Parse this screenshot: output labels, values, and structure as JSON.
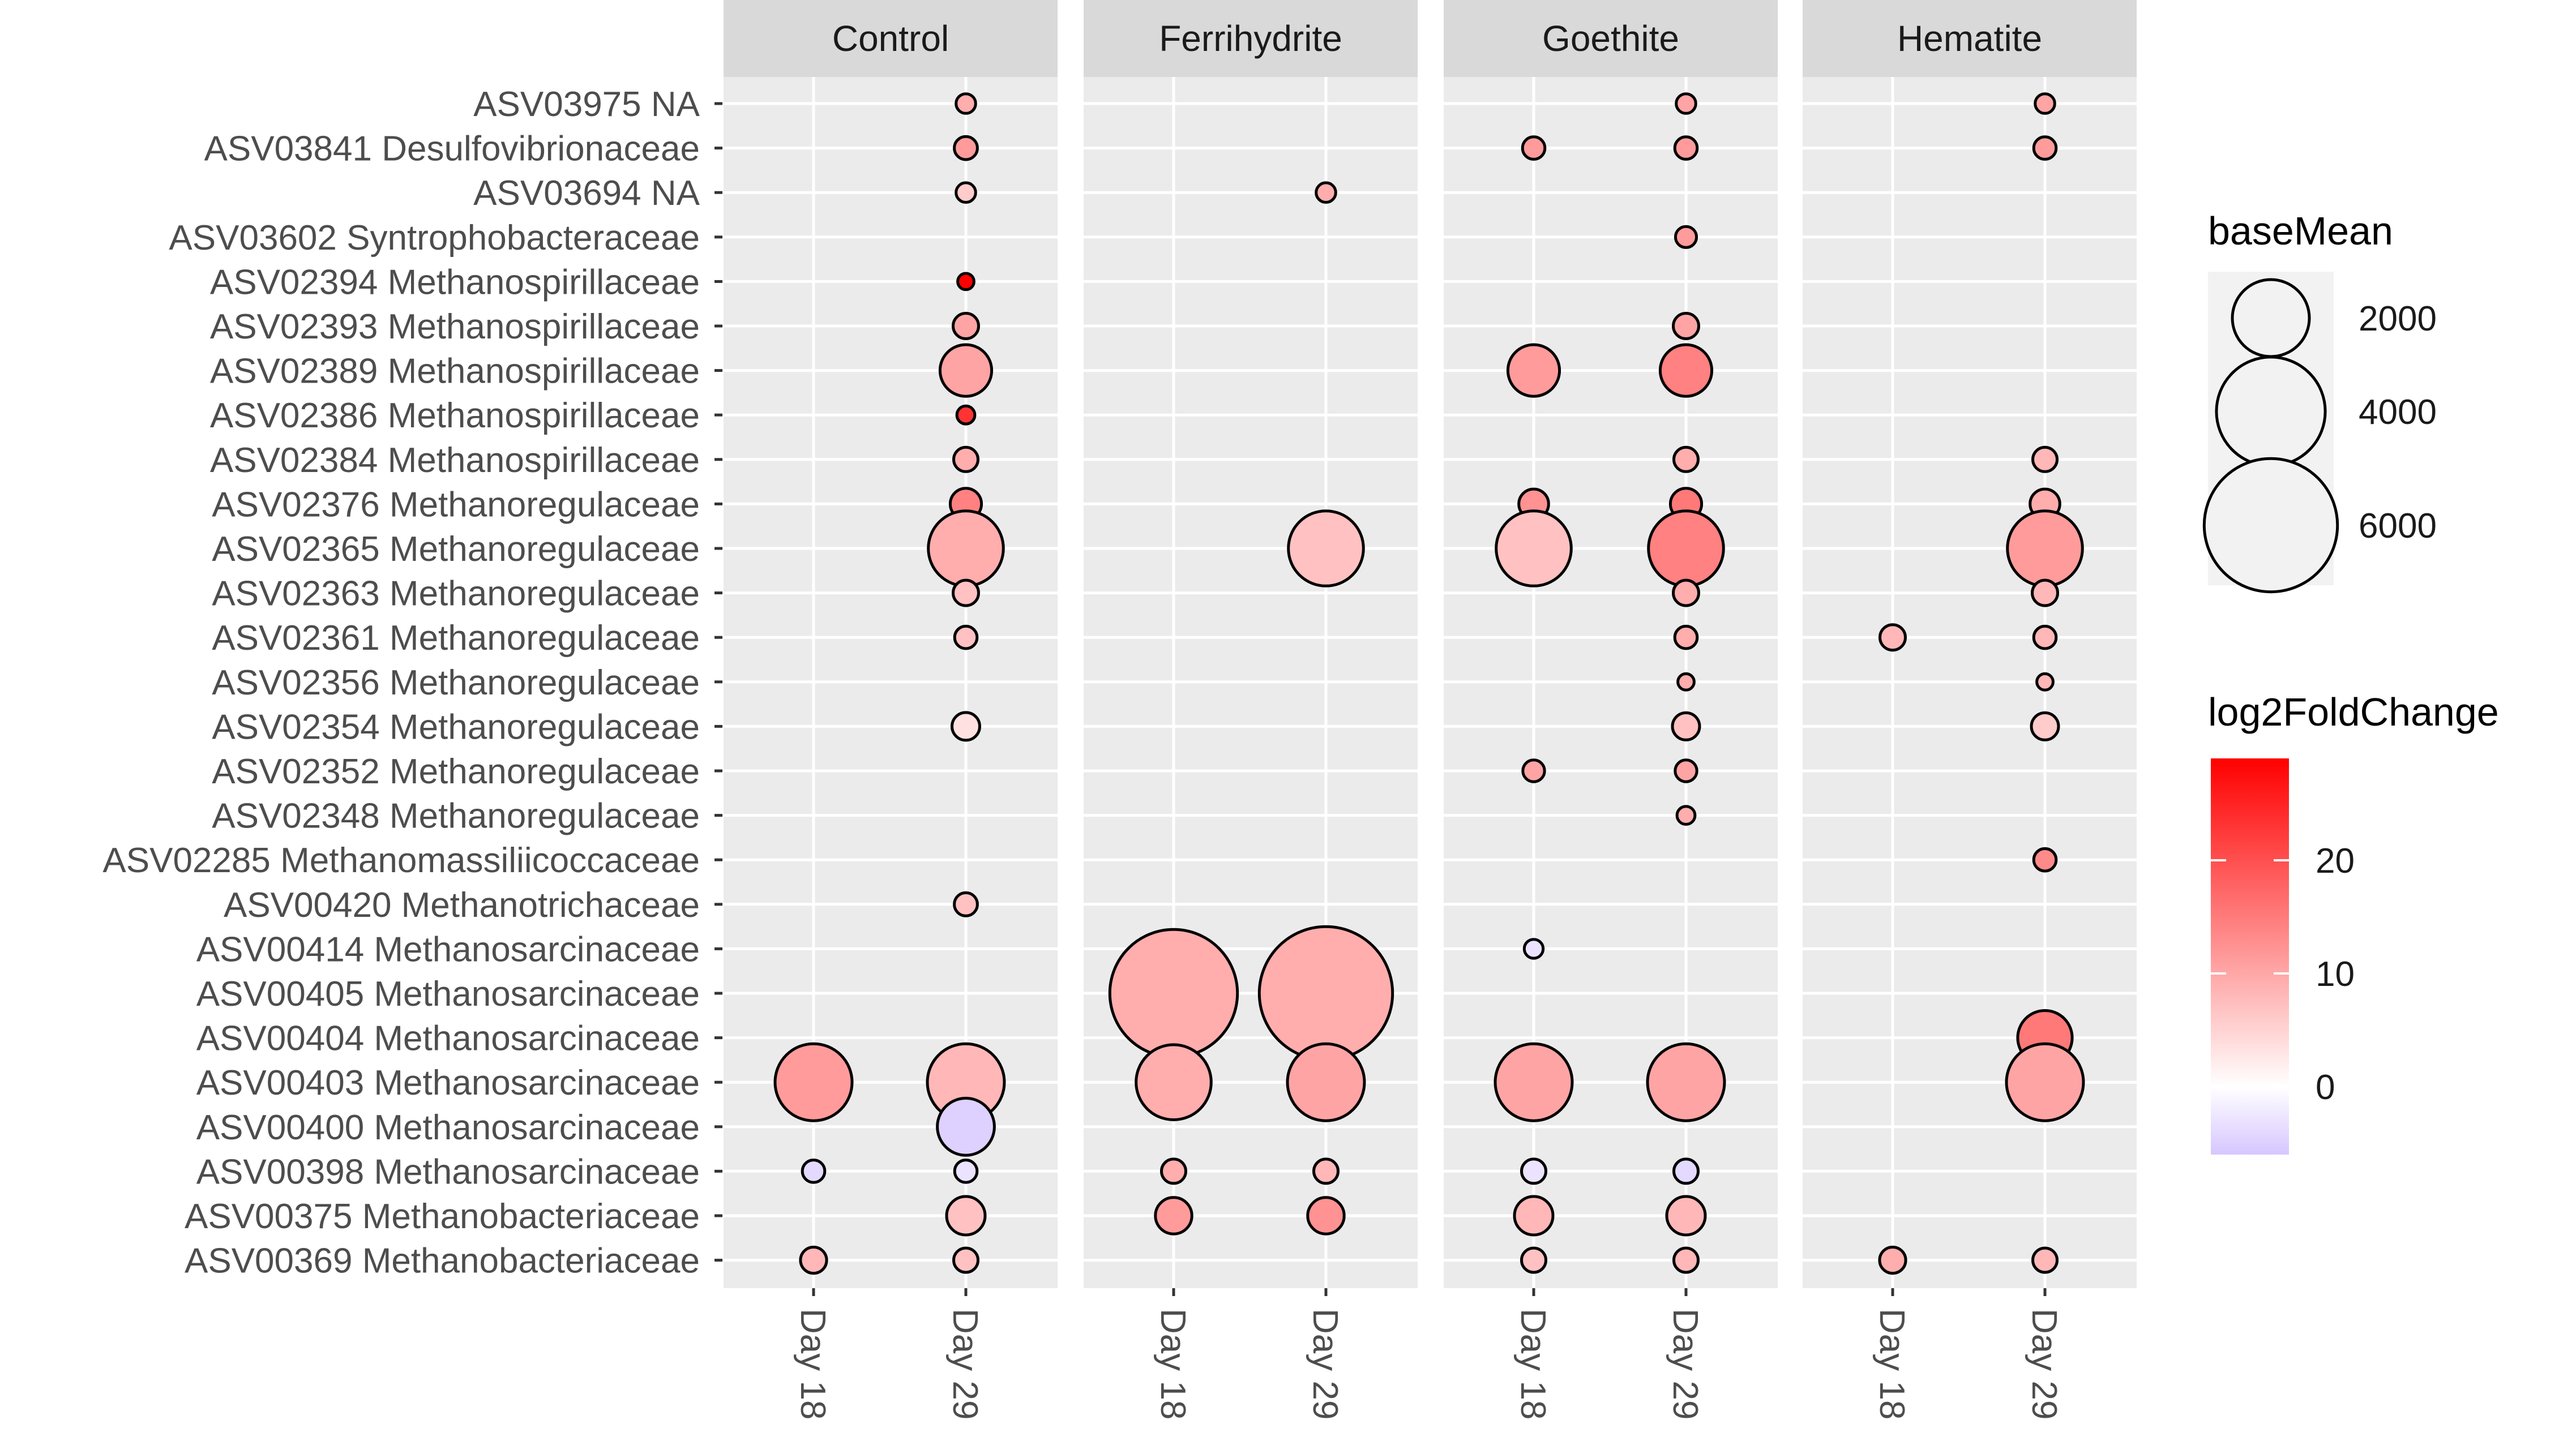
{
  "chart_data": {
    "type": "scatter",
    "chart_kind": "faceted-bubble",
    "facets": [
      "Control",
      "Ferrihydrite",
      "Goethite",
      "Hematite"
    ],
    "x_categories": [
      "Day 18",
      "Day 29"
    ],
    "y_categories": [
      "ASV03975 NA",
      "ASV03841 Desulfovibrionaceae",
      "ASV03694 NA",
      "ASV03602 Syntrophobacteraceae",
      "ASV02394 Methanospirillaceae",
      "ASV02393 Methanospirillaceae",
      "ASV02389 Methanospirillaceae",
      "ASV02386 Methanospirillaceae",
      "ASV02384 Methanospirillaceae",
      "ASV02376 Methanoregulaceae",
      "ASV02365 Methanoregulaceae",
      "ASV02363 Methanoregulaceae",
      "ASV02361 Methanoregulaceae",
      "ASV02356 Methanoregulaceae",
      "ASV02354 Methanoregulaceae",
      "ASV02352 Methanoregulaceae",
      "ASV02348 Methanoregulaceae",
      "ASV02285 Methanomassiliicoccaceae",
      "ASV00420 Methanotrichaceae",
      "ASV00414 Methanosarcinaceae",
      "ASV00405 Methanosarcinaceae",
      "ASV00404 Methanosarcinaceae",
      "ASV00403 Methanosarcinaceae",
      "ASV00400 Methanosarcinaceae",
      "ASV00398 Methanosarcinaceae",
      "ASV00375 Methanobacteriaceae",
      "ASV00369 Methanobacteriaceae"
    ],
    "legend": {
      "size_title": "baseMean",
      "size_breaks": [
        2000,
        4000,
        6000
      ],
      "size_labels": [
        "2000",
        "4000",
        "6000"
      ],
      "color_title": "log2FoldChange",
      "color_breaks": [
        0,
        10,
        20
      ],
      "color_labels": [
        "0",
        "10",
        "20"
      ],
      "color_range": [
        -6,
        29
      ],
      "color_low": "#d7c6ff",
      "color_mid": "#ffffff",
      "color_high": "#ff0000"
    },
    "points": [
      {
        "facet": "Control",
        "x": "Day 29",
        "y": "ASV03975 NA",
        "baseMean": 130,
        "log2FoldChange": 7
      },
      {
        "facet": "Control",
        "x": "Day 29",
        "y": "ASV03841 Desulfovibrionaceae",
        "baseMean": 180,
        "log2FoldChange": 9
      },
      {
        "facet": "Control",
        "x": "Day 29",
        "y": "ASV03694 NA",
        "baseMean": 130,
        "log2FoldChange": 4
      },
      {
        "facet": "Control",
        "x": "Day 29",
        "y": "ASV02394 Methanospirillaceae",
        "baseMean": 90,
        "log2FoldChange": 29
      },
      {
        "facet": "Control",
        "x": "Day 29",
        "y": "ASV02393 Methanospirillaceae",
        "baseMean": 220,
        "log2FoldChange": 8
      },
      {
        "facet": "Control",
        "x": "Day 29",
        "y": "ASV02389 Methanospirillaceae",
        "baseMean": 900,
        "log2FoldChange": 8
      },
      {
        "facet": "Control",
        "x": "Day 29",
        "y": "ASV02386 Methanospirillaceae",
        "baseMean": 110,
        "log2FoldChange": 22
      },
      {
        "facet": "Control",
        "x": "Day 29",
        "y": "ASV02384 Methanospirillaceae",
        "baseMean": 200,
        "log2FoldChange": 7
      },
      {
        "facet": "Control",
        "x": "Day 29",
        "y": "ASV02376 Methanoregulaceae",
        "baseMean": 330,
        "log2FoldChange": 12
      },
      {
        "facet": "Control",
        "x": "Day 29",
        "y": "ASV02365 Methanoregulaceae",
        "baseMean": 1900,
        "log2FoldChange": 7
      },
      {
        "facet": "Control",
        "x": "Day 29",
        "y": "ASV02363 Methanoregulaceae",
        "baseMean": 220,
        "log2FoldChange": 5
      },
      {
        "facet": "Control",
        "x": "Day 29",
        "y": "ASV02361 Methanoregulaceae",
        "baseMean": 170,
        "log2FoldChange": 5
      },
      {
        "facet": "Control",
        "x": "Day 29",
        "y": "ASV02354 Methanoregulaceae",
        "baseMean": 260,
        "log2FoldChange": 2
      },
      {
        "facet": "Control",
        "x": "Day 29",
        "y": "ASV00420 Methanotrichaceae",
        "baseMean": 180,
        "log2FoldChange": 5
      },
      {
        "facet": "Control",
        "x": "Day 18",
        "y": "ASV00403 Methanosarcinaceae",
        "baseMean": 2000,
        "log2FoldChange": 9
      },
      {
        "facet": "Control",
        "x": "Day 29",
        "y": "ASV00403 Methanosarcinaceae",
        "baseMean": 2000,
        "log2FoldChange": 6
      },
      {
        "facet": "Control",
        "x": "Day 29",
        "y": "ASV00400 Methanosarcinaceae",
        "baseMean": 1100,
        "log2FoldChange": -5
      },
      {
        "facet": "Control",
        "x": "Day 18",
        "y": "ASV00398 Methanosarcinaceae",
        "baseMean": 170,
        "log2FoldChange": -4
      },
      {
        "facet": "Control",
        "x": "Day 29",
        "y": "ASV00398 Methanosarcinaceae",
        "baseMean": 170,
        "log2FoldChange": -3
      },
      {
        "facet": "Control",
        "x": "Day 29",
        "y": "ASV00375 Methanobacteriaceae",
        "baseMean": 500,
        "log2FoldChange": 5
      },
      {
        "facet": "Control",
        "x": "Day 18",
        "y": "ASV00369 Methanobacteriaceae",
        "baseMean": 230,
        "log2FoldChange": 6
      },
      {
        "facet": "Control",
        "x": "Day 29",
        "y": "ASV00369 Methanobacteriaceae",
        "baseMean": 200,
        "log2FoldChange": 5
      },
      {
        "facet": "Ferrihydrite",
        "x": "Day 29",
        "y": "ASV03694 NA",
        "baseMean": 130,
        "log2FoldChange": 7
      },
      {
        "facet": "Ferrihydrite",
        "x": "Day 29",
        "y": "ASV02365 Methanoregulaceae",
        "baseMean": 1900,
        "log2FoldChange": 5
      },
      {
        "facet": "Ferrihydrite",
        "x": "Day 18",
        "y": "ASV00405 Methanosarcinaceae",
        "baseMean": 5500,
        "log2FoldChange": 7
      },
      {
        "facet": "Ferrihydrite",
        "x": "Day 29",
        "y": "ASV00405 Methanosarcinaceae",
        "baseMean": 6000,
        "log2FoldChange": 7
      },
      {
        "facet": "Ferrihydrite",
        "x": "Day 18",
        "y": "ASV00403 Methanosarcinaceae",
        "baseMean": 1900,
        "log2FoldChange": 7
      },
      {
        "facet": "Ferrihydrite",
        "x": "Day 29",
        "y": "ASV00403 Methanosarcinaceae",
        "baseMean": 2000,
        "log2FoldChange": 8
      },
      {
        "facet": "Ferrihydrite",
        "x": "Day 18",
        "y": "ASV00398 Methanosarcinaceae",
        "baseMean": 200,
        "log2FoldChange": 7
      },
      {
        "facet": "Ferrihydrite",
        "x": "Day 29",
        "y": "ASV00398 Methanosarcinaceae",
        "baseMean": 200,
        "log2FoldChange": 6
      },
      {
        "facet": "Ferrihydrite",
        "x": "Day 18",
        "y": "ASV00375 Methanobacteriaceae",
        "baseMean": 450,
        "log2FoldChange": 9
      },
      {
        "facet": "Ferrihydrite",
        "x": "Day 29",
        "y": "ASV00375 Methanobacteriaceae",
        "baseMean": 450,
        "log2FoldChange": 10
      },
      {
        "facet": "Goethite",
        "x": "Day 29",
        "y": "ASV03975 NA",
        "baseMean": 130,
        "log2FoldChange": 8
      },
      {
        "facet": "Goethite",
        "x": "Day 18",
        "y": "ASV03841 Desulfovibrionaceae",
        "baseMean": 170,
        "log2FoldChange": 9
      },
      {
        "facet": "Goethite",
        "x": "Day 29",
        "y": "ASV03841 Desulfovibrionaceae",
        "baseMean": 170,
        "log2FoldChange": 9
      },
      {
        "facet": "Goethite",
        "x": "Day 29",
        "y": "ASV03602 Syntrophobacteraceae",
        "baseMean": 150,
        "log2FoldChange": 9
      },
      {
        "facet": "Goethite",
        "x": "Day 29",
        "y": "ASV02393 Methanospirillaceae",
        "baseMean": 220,
        "log2FoldChange": 8
      },
      {
        "facet": "Goethite",
        "x": "Day 18",
        "y": "ASV02389 Methanospirillaceae",
        "baseMean": 900,
        "log2FoldChange": 9
      },
      {
        "facet": "Goethite",
        "x": "Day 29",
        "y": "ASV02389 Methanospirillaceae",
        "baseMean": 900,
        "log2FoldChange": 12
      },
      {
        "facet": "Goethite",
        "x": "Day 29",
        "y": "ASV02384 Methanospirillaceae",
        "baseMean": 200,
        "log2FoldChange": 7
      },
      {
        "facet": "Goethite",
        "x": "Day 18",
        "y": "ASV02376 Methanoregulaceae",
        "baseMean": 300,
        "log2FoldChange": 10
      },
      {
        "facet": "Goethite",
        "x": "Day 29",
        "y": "ASV02376 Methanoregulaceae",
        "baseMean": 330,
        "log2FoldChange": 13
      },
      {
        "facet": "Goethite",
        "x": "Day 18",
        "y": "ASV02365 Methanoregulaceae",
        "baseMean": 1900,
        "log2FoldChange": 5
      },
      {
        "facet": "Goethite",
        "x": "Day 29",
        "y": "ASV02365 Methanoregulaceae",
        "baseMean": 1900,
        "log2FoldChange": 12
      },
      {
        "facet": "Goethite",
        "x": "Day 29",
        "y": "ASV02363 Methanoregulaceae",
        "baseMean": 220,
        "log2FoldChange": 7
      },
      {
        "facet": "Goethite",
        "x": "Day 29",
        "y": "ASV02361 Methanoregulaceae",
        "baseMean": 170,
        "log2FoldChange": 7
      },
      {
        "facet": "Goethite",
        "x": "Day 29",
        "y": "ASV02356 Methanoregulaceae",
        "baseMean": 90,
        "log2FoldChange": 7
      },
      {
        "facet": "Goethite",
        "x": "Day 29",
        "y": "ASV02354 Methanoregulaceae",
        "baseMean": 250,
        "log2FoldChange": 5
      },
      {
        "facet": "Goethite",
        "x": "Day 18",
        "y": "ASV02352 Methanoregulaceae",
        "baseMean": 160,
        "log2FoldChange": 8
      },
      {
        "facet": "Goethite",
        "x": "Day 29",
        "y": "ASV02352 Methanoregulaceae",
        "baseMean": 160,
        "log2FoldChange": 8
      },
      {
        "facet": "Goethite",
        "x": "Day 29",
        "y": "ASV02348 Methanoregulaceae",
        "baseMean": 110,
        "log2FoldChange": 7
      },
      {
        "facet": "Goethite",
        "x": "Day 18",
        "y": "ASV00414 Methanosarcinaceae",
        "baseMean": 120,
        "log2FoldChange": -3
      },
      {
        "facet": "Goethite",
        "x": "Day 18",
        "y": "ASV00403 Methanosarcinaceae",
        "baseMean": 2000,
        "log2FoldChange": 8
      },
      {
        "facet": "Goethite",
        "x": "Day 29",
        "y": "ASV00403 Methanosarcinaceae",
        "baseMean": 2000,
        "log2FoldChange": 8
      },
      {
        "facet": "Goethite",
        "x": "Day 18",
        "y": "ASV00398 Methanosarcinaceae",
        "baseMean": 200,
        "log2FoldChange": -3
      },
      {
        "facet": "Goethite",
        "x": "Day 29",
        "y": "ASV00398 Methanosarcinaceae",
        "baseMean": 200,
        "log2FoldChange": -4
      },
      {
        "facet": "Goethite",
        "x": "Day 18",
        "y": "ASV00375 Methanobacteriaceae",
        "baseMean": 500,
        "log2FoldChange": 6
      },
      {
        "facet": "Goethite",
        "x": "Day 29",
        "y": "ASV00375 Methanobacteriaceae",
        "baseMean": 500,
        "log2FoldChange": 6
      },
      {
        "facet": "Goethite",
        "x": "Day 18",
        "y": "ASV00369 Methanobacteriaceae",
        "baseMean": 200,
        "log2FoldChange": 5
      },
      {
        "facet": "Goethite",
        "x": "Day 29",
        "y": "ASV00369 Methanobacteriaceae",
        "baseMean": 200,
        "log2FoldChange": 6
      },
      {
        "facet": "Hematite",
        "x": "Day 29",
        "y": "ASV03975 NA",
        "baseMean": 130,
        "log2FoldChange": 8
      },
      {
        "facet": "Hematite",
        "x": "Day 29",
        "y": "ASV03841 Desulfovibrionaceae",
        "baseMean": 170,
        "log2FoldChange": 9
      },
      {
        "facet": "Hematite",
        "x": "Day 29",
        "y": "ASV02384 Methanospirillaceae",
        "baseMean": 200,
        "log2FoldChange": 6
      },
      {
        "facet": "Hematite",
        "x": "Day 29",
        "y": "ASV02376 Methanoregulaceae",
        "baseMean": 300,
        "log2FoldChange": 7
      },
      {
        "facet": "Hematite",
        "x": "Day 29",
        "y": "ASV02365 Methanoregulaceae",
        "baseMean": 1900,
        "log2FoldChange": 9
      },
      {
        "facet": "Hematite",
        "x": "Day 29",
        "y": "ASV02363 Methanoregulaceae",
        "baseMean": 220,
        "log2FoldChange": 6
      },
      {
        "facet": "Hematite",
        "x": "Day 18",
        "y": "ASV02361 Methanoregulaceae",
        "baseMean": 220,
        "log2FoldChange": 6
      },
      {
        "facet": "Hematite",
        "x": "Day 29",
        "y": "ASV02361 Methanoregulaceae",
        "baseMean": 170,
        "log2FoldChange": 6
      },
      {
        "facet": "Hematite",
        "x": "Day 29",
        "y": "ASV02356 Methanoregulaceae",
        "baseMean": 90,
        "log2FoldChange": 6
      },
      {
        "facet": "Hematite",
        "x": "Day 29",
        "y": "ASV02354 Methanoregulaceae",
        "baseMean": 250,
        "log2FoldChange": 4
      },
      {
        "facet": "Hematite",
        "x": "Day 29",
        "y": "ASV02285 Methanomassiliicoccaceae",
        "baseMean": 170,
        "log2FoldChange": 11
      },
      {
        "facet": "Hematite",
        "x": "Day 29",
        "y": "ASV00404 Methanosarcinaceae",
        "baseMean": 1000,
        "log2FoldChange": 13
      },
      {
        "facet": "Hematite",
        "x": "Day 29",
        "y": "ASV00403 Methanosarcinaceae",
        "baseMean": 2000,
        "log2FoldChange": 8
      },
      {
        "facet": "Hematite",
        "x": "Day 18",
        "y": "ASV00369 Methanobacteriaceae",
        "baseMean": 230,
        "log2FoldChange": 7
      },
      {
        "facet": "Hematite",
        "x": "Day 29",
        "y": "ASV00369 Methanobacteriaceae",
        "baseMean": 200,
        "log2FoldChange": 6
      }
    ]
  }
}
